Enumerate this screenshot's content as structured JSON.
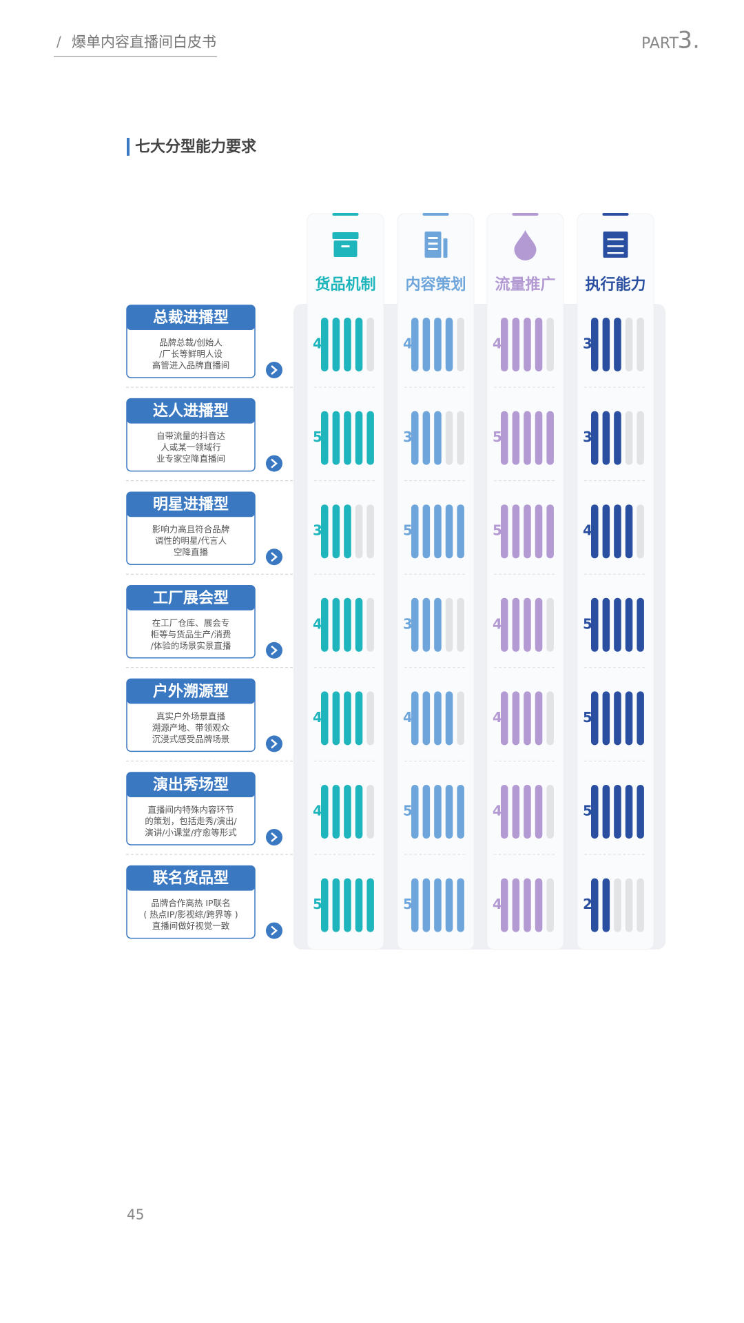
{
  "header": {
    "slash": "/",
    "title": "爆单内容直播间白皮书",
    "part": "PART",
    "part_number": "3."
  },
  "section_title": "七大分型能力要求",
  "page_number": "45",
  "chart_data": {
    "type": "rating-matrix",
    "ylim": [
      0,
      5
    ],
    "categories": [
      "总裁进播型",
      "达人进播型",
      "明星进播型",
      "工厂展会型",
      "户外溯源型",
      "演出秀场型",
      "联名货品型"
    ],
    "descriptions": [
      [
        "品牌总裁/创始人",
        "/厂长等鲜明人设",
        "高管进入品牌直播间"
      ],
      [
        "自带流量的抖音达",
        "人或某一领域行",
        "业专家空降直播间"
      ],
      [
        "影响力高且符合品牌",
        "调性的明星/代言人",
        "空降直播"
      ],
      [
        "在工厂仓库、展会专",
        "柜等与货品生产/消费",
        "/体验的场景实景直播"
      ],
      [
        "真实户外场景直播",
        "溯源产地、带领观众",
        "沉浸式感受品牌场景"
      ],
      [
        "直播间内特殊内容环节",
        "的策划，包括走秀/演出/",
        "演讲/小课堂/疗愈等形式"
      ],
      [
        "品牌合作高热 IP联名",
        "( 热点IP/影视综/跨界等 )",
        "直播间做好视觉一致"
      ]
    ],
    "series": [
      {
        "name": "货品机制",
        "color": "#1fb5bd",
        "values": [
          4,
          5,
          3,
          4,
          4,
          4,
          5
        ]
      },
      {
        "name": "内容策划",
        "color": "#6ea6dc",
        "values": [
          4,
          3,
          5,
          3,
          4,
          5,
          5
        ]
      },
      {
        "name": "流量推广",
        "color": "#b39ad3",
        "values": [
          4,
          5,
          5,
          4,
          4,
          4,
          4
        ]
      },
      {
        "name": "执行能力",
        "color": "#2a4fa0",
        "values": [
          3,
          3,
          4,
          5,
          5,
          5,
          2
        ]
      }
    ]
  }
}
